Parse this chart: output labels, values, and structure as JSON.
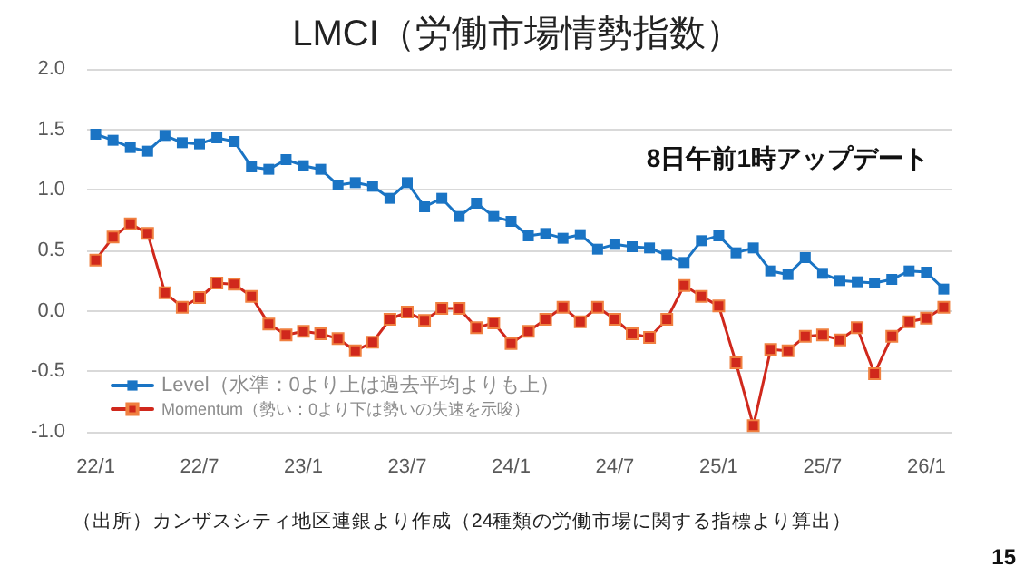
{
  "chart_data": {
    "type": "line",
    "title": "LMCI（労働市場情勢指数）",
    "categories": [
      "22/1",
      null,
      null,
      null,
      null,
      null,
      "22/7",
      null,
      null,
      null,
      null,
      null,
      "23/1",
      null,
      null,
      null,
      null,
      null,
      "23/7",
      null,
      null,
      null,
      null,
      null,
      "24/1",
      null,
      null,
      null,
      null,
      null,
      "24/7",
      null,
      null,
      null,
      null,
      null,
      "25/1",
      null,
      null,
      null,
      null,
      null,
      "25/7",
      null,
      null,
      null,
      null,
      null,
      "26/1",
      null
    ],
    "series": [
      {
        "name": "Level（水準：0より上は過去平均よりも上）",
        "color": "#1a74c4",
        "values": [
          1.46,
          1.41,
          1.35,
          1.32,
          1.45,
          1.39,
          1.38,
          1.43,
          1.4,
          1.19,
          1.17,
          1.25,
          1.2,
          1.17,
          1.04,
          1.06,
          1.03,
          0.93,
          1.06,
          0.86,
          0.93,
          0.78,
          0.89,
          0.78,
          0.74,
          0.62,
          0.64,
          0.6,
          0.63,
          0.51,
          0.55,
          0.53,
          0.52,
          0.46,
          0.4,
          0.58,
          0.62,
          0.48,
          0.52,
          0.33,
          0.3,
          0.44,
          0.31,
          0.25,
          0.24,
          0.23,
          0.26,
          0.33,
          0.32,
          0.18
        ]
      },
      {
        "name": "Momentum（勢い：0より下は勢いの失速を示唆）",
        "color": "#d0281c",
        "values": [
          0.42,
          0.61,
          0.72,
          0.64,
          0.15,
          0.03,
          0.11,
          0.23,
          0.22,
          0.12,
          -0.11,
          -0.2,
          -0.17,
          -0.19,
          -0.23,
          -0.33,
          -0.26,
          -0.07,
          -0.01,
          -0.08,
          0.02,
          0.02,
          -0.14,
          -0.1,
          -0.27,
          -0.17,
          -0.07,
          0.03,
          -0.09,
          0.03,
          -0.07,
          -0.19,
          -0.22,
          -0.07,
          0.21,
          0.12,
          0.04,
          -0.43,
          -0.95,
          -0.32,
          -0.33,
          -0.21,
          -0.2,
          -0.24,
          -0.14,
          -0.52,
          -0.21,
          -0.09,
          -0.06,
          0.03
        ]
      }
    ],
    "ylim": [
      -1,
      2
    ],
    "yticks": [
      {
        "value": -1,
        "label": "-1.0"
      },
      {
        "value": -0.5,
        "label": "-0.5"
      },
      {
        "value": 0,
        "label": "0.0"
      },
      {
        "value": 0.5,
        "label": "0.5"
      },
      {
        "value": 1,
        "label": "1.0"
      },
      {
        "value": 1.5,
        "label": "1.5"
      },
      {
        "value": 2,
        "label": "2.0"
      }
    ],
    "grid": "y",
    "legend": "bottom left",
    "marker": "square",
    "line_style": "solid",
    "annotations": [
      "8日午前1時アップデート",
      "（出所）カンザスシティ地区連銀より作成（24種類の労働市場に関する指標より算出）",
      "15"
    ]
  }
}
